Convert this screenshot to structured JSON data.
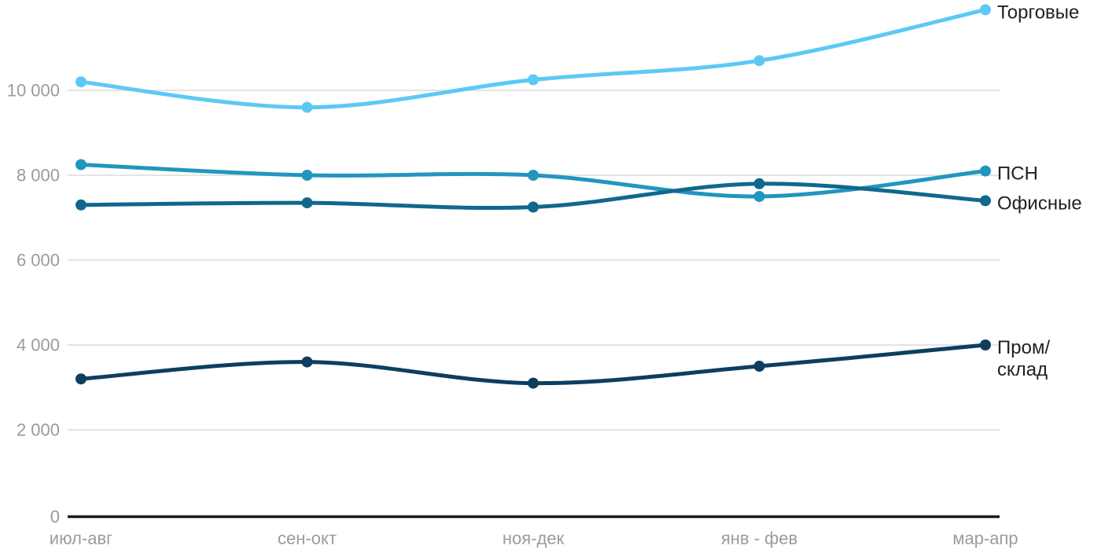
{
  "chart_data": {
    "type": "line",
    "title": "",
    "xlabel": "",
    "ylabel": "",
    "categories": [
      "июл-авг",
      "сен-окт",
      "ноя-дек",
      "янв - фев",
      "мар-апр"
    ],
    "series": [
      {
        "id": "retail",
        "name": "Торговые",
        "label_lines": [
          "Торговые"
        ],
        "color": "#5CC9F5",
        "values": [
          10200,
          9600,
          10250,
          10700,
          11900
        ]
      },
      {
        "id": "psn",
        "name": "ПСН",
        "label_lines": [
          "ПСН"
        ],
        "color": "#2196BF",
        "values": [
          8250,
          8000,
          8000,
          7500,
          8100
        ]
      },
      {
        "id": "office",
        "name": "Офисные",
        "label_lines": [
          "Офисные"
        ],
        "color": "#10688C",
        "values": [
          7300,
          7350,
          7250,
          7800,
          7400
        ]
      },
      {
        "id": "industrial-warehouse",
        "name": "Пром/склад",
        "label_lines": [
          "Пром/",
          "склад"
        ],
        "color": "#0E3E5E",
        "values": [
          3200,
          3600,
          3100,
          3500,
          4000
        ]
      }
    ],
    "ylim": [
      0,
      12000
    ],
    "ytick_values": [
      0,
      2000,
      4000,
      6000,
      8000,
      10000
    ],
    "ytick_labels": [
      "0",
      "2 000",
      "4 000",
      "6 000",
      "8 000",
      "10 000"
    ],
    "grid": true,
    "curve": "spline",
    "legend_position": "end-of-line"
  },
  "colors": {
    "background": "#FFFFFF",
    "gridline": "#E4E4E4",
    "axis_line": "#1A1A1A",
    "tick_text": "#9B9B9B",
    "series_label_text": "#212121"
  }
}
